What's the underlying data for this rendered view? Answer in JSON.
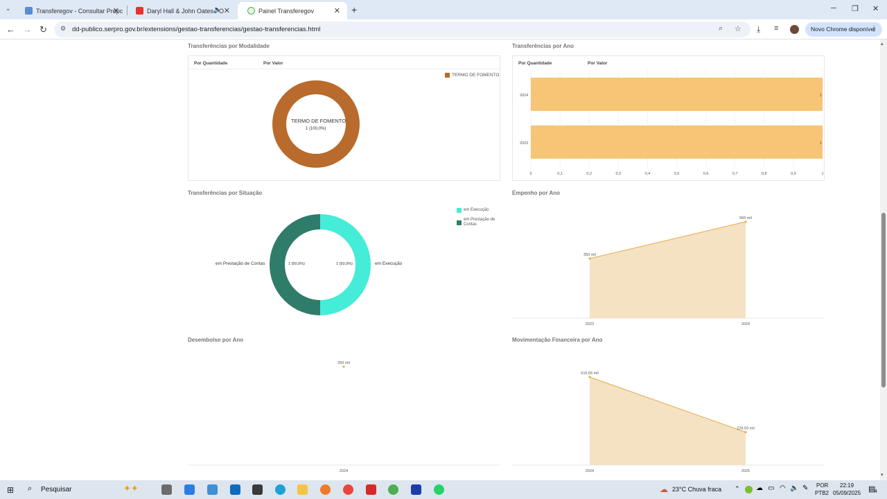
{
  "browser": {
    "tabs": [
      {
        "title": "Transferegov - Consultar Propc",
        "active": false
      },
      {
        "title": "Daryl Hall & John Oates - O",
        "active": false
      },
      {
        "title": "Painel Transferegov",
        "active": true
      }
    ],
    "url": "dd-publico.serpro.gov.br/extensions/gestao-transferencias/gestao-transferencias.html",
    "update_label": "Novo Chrome disponível"
  },
  "sections": {
    "modalidade": {
      "title": "Transferências por Modalidade",
      "tabs": [
        "Por Quantidade",
        "Por Valor"
      ],
      "legend": "TERMO DE FOMENTO",
      "center_label": "TERMO DE FOMENTO",
      "center_value": "1 (100,0%)"
    },
    "ano": {
      "title": "Transferências por Ano",
      "tabs": [
        "Por Quantidade",
        "Por Valor"
      ]
    },
    "situacao": {
      "title": "Transferências por Situação",
      "legend": [
        "em Execução",
        "em Prestação de Contas"
      ],
      "left_label": "em Prestação de Contas",
      "left_value": "1 (50,0%)",
      "right_label": "em Execução",
      "right_value": "1 (50,0%)"
    },
    "empenho": {
      "title": "Empenho por Ano"
    },
    "desembolso": {
      "title": "Desembolso por Ano"
    },
    "movimentacao": {
      "title": "Movimentação Financeira por Ano"
    }
  },
  "chart_data": [
    {
      "type": "pie",
      "labels": [
        "TERMO DE FOMENTO"
      ],
      "values": [
        1
      ],
      "colors": [
        "#b86b2c"
      ]
    },
    {
      "type": "bar",
      "orientation": "horizontal",
      "categories": [
        "2024",
        "2023"
      ],
      "values": [
        1,
        1
      ],
      "xlim": [
        0,
        1
      ],
      "xticks": [
        "0",
        "0,1",
        "0,2",
        "0,3",
        "0,4",
        "0,5",
        "0,6",
        "0,7",
        "0,8",
        "0,9",
        "1"
      ],
      "value_labels": [
        "1",
        "1"
      ],
      "color": "#f6c576"
    },
    {
      "type": "pie",
      "labels": [
        "em Execução",
        "em Prestação de Contas"
      ],
      "values": [
        1,
        1
      ],
      "colors": [
        "#45ecd8",
        "#2f7c6a"
      ]
    },
    {
      "type": "area",
      "categories": [
        "2023",
        "2024"
      ],
      "values": [
        350,
        566
      ],
      "value_labels": [
        "350 mil",
        "566 mil"
      ],
      "color": "#f5e2c3"
    },
    {
      "type": "line",
      "categories": [
        "2024"
      ],
      "values": [
        250
      ],
      "value_labels": [
        "250 mil"
      ]
    },
    {
      "type": "area",
      "categories": [
        "2024",
        "2025"
      ],
      "values": [
        615.55,
        229.59
      ],
      "value_labels": [
        "615,55 mil",
        "229,59 mil"
      ],
      "color": "#f5e2c3"
    }
  ],
  "taskbar": {
    "search_placeholder": "Pesquisar",
    "weather": "23°C  Chuva fraca",
    "lang": "POR",
    "layout": "PTB2",
    "time": "22:19",
    "date": "05/09/2025",
    "notif": "4"
  }
}
